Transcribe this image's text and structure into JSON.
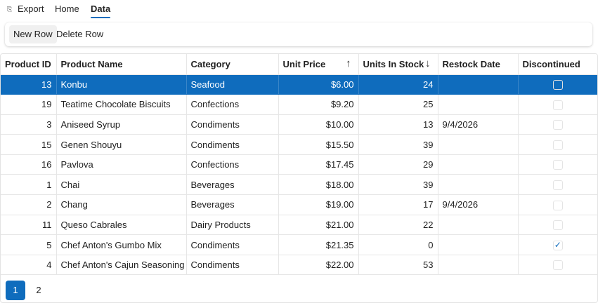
{
  "tabs": {
    "export": "Export",
    "home": "Home",
    "data": "Data",
    "export_icon": "export-icon"
  },
  "toolbar": {
    "new_row": "New Row",
    "delete_row": "Delete Row"
  },
  "grid": {
    "columns": [
      "Product ID",
      "Product Name",
      "Category",
      "Unit Price",
      "Units In Stock",
      "Restock Date",
      "Discontinued"
    ],
    "sort_indicators": {
      "unit_price": "↑",
      "units_in_stock": "↓"
    },
    "rows": [
      {
        "id": "13",
        "name": "Konbu",
        "category": "Seafood",
        "price": "$6.00",
        "stock": "24",
        "restock": "",
        "discontinued": false,
        "selected": true
      },
      {
        "id": "19",
        "name": "Teatime Chocolate Biscuits",
        "category": "Confections",
        "price": "$9.20",
        "stock": "25",
        "restock": "",
        "discontinued": false,
        "selected": false
      },
      {
        "id": "3",
        "name": "Aniseed Syrup",
        "category": "Condiments",
        "price": "$10.00",
        "stock": "13",
        "restock": "9/4/2026",
        "discontinued": false,
        "selected": false
      },
      {
        "id": "15",
        "name": "Genen Shouyu",
        "category": "Condiments",
        "price": "$15.50",
        "stock": "39",
        "restock": "",
        "discontinued": false,
        "selected": false
      },
      {
        "id": "16",
        "name": "Pavlova",
        "category": "Confections",
        "price": "$17.45",
        "stock": "29",
        "restock": "",
        "discontinued": false,
        "selected": false
      },
      {
        "id": "1",
        "name": "Chai",
        "category": "Beverages",
        "price": "$18.00",
        "stock": "39",
        "restock": "",
        "discontinued": false,
        "selected": false
      },
      {
        "id": "2",
        "name": "Chang",
        "category": "Beverages",
        "price": "$19.00",
        "stock": "17",
        "restock": "9/4/2026",
        "discontinued": false,
        "selected": false
      },
      {
        "id": "11",
        "name": "Queso Cabrales",
        "category": "Dairy Products",
        "price": "$21.00",
        "stock": "22",
        "restock": "",
        "discontinued": false,
        "selected": false
      },
      {
        "id": "5",
        "name": "Chef Anton's Gumbo Mix",
        "category": "Condiments",
        "price": "$21.35",
        "stock": "0",
        "restock": "",
        "discontinued": true,
        "selected": false
      },
      {
        "id": "4",
        "name": "Chef Anton's Cajun Seasoning",
        "category": "Condiments",
        "price": "$22.00",
        "stock": "53",
        "restock": "",
        "discontinued": false,
        "selected": false
      }
    ]
  },
  "pager": {
    "pages": [
      "1",
      "2"
    ],
    "current": "1"
  },
  "colors": {
    "accent": "#0f6cbd"
  }
}
